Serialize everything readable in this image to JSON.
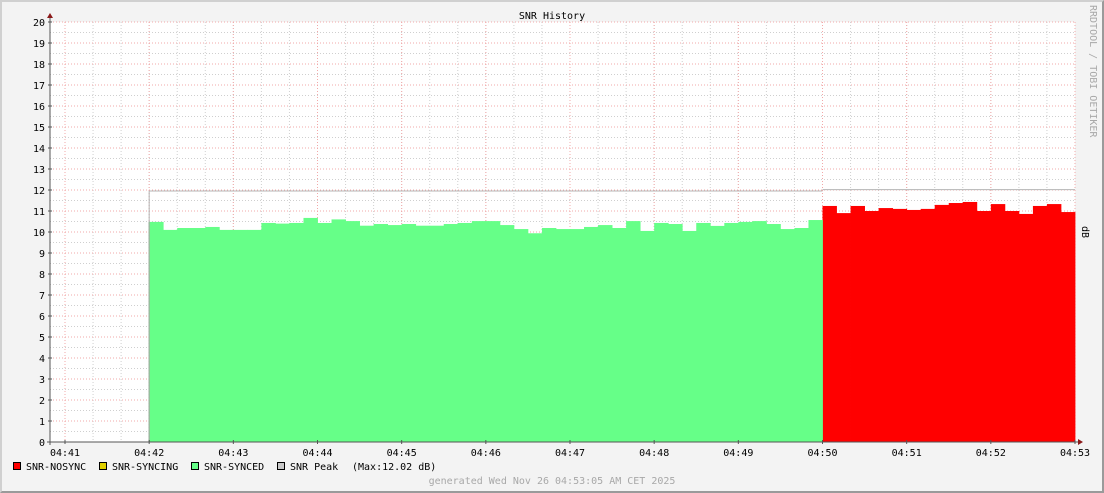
{
  "chart_data": {
    "type": "area",
    "title": "SNR History",
    "ylabel": "dB",
    "watermark": "RRDTOOL / TOBI OETIKER",
    "ylim": [
      0,
      20
    ],
    "yticks": [
      "0",
      "1",
      "2",
      "3",
      "4",
      "5",
      "6",
      "7",
      "8",
      "9",
      "10",
      "11",
      "12",
      "13",
      "14",
      "15",
      "16",
      "17",
      "18",
      "19",
      "20"
    ],
    "xlim": [
      "04:41",
      "04:53"
    ],
    "xticks": [
      "04:41",
      "04:42",
      "04:43",
      "04:44",
      "04:45",
      "04:46",
      "04:47",
      "04:48",
      "04:49",
      "04:50",
      "04:51",
      "04:52",
      "04:53"
    ],
    "grid": true,
    "step_seconds": 10,
    "series": [
      {
        "name": "SNR-NOSYNC",
        "color": "#ff0000",
        "start": "04:50:00",
        "values": [
          11.24,
          10.9,
          11.24,
          11.0,
          11.14,
          11.1,
          11.05,
          11.1,
          11.29,
          11.38,
          11.43,
          11.0,
          11.33,
          11.0,
          10.86,
          11.24,
          11.33,
          10.95
        ]
      },
      {
        "name": "SNR-SYNCING",
        "color": "#e0d000",
        "start": null,
        "values": []
      },
      {
        "name": "SNR-SYNCED",
        "color": "#66ff88",
        "start": "04:42:00",
        "values": [
          10.48,
          10.1,
          10.19,
          10.19,
          10.24,
          10.1,
          10.1,
          10.1,
          10.43,
          10.4,
          10.43,
          10.67,
          10.43,
          10.6,
          10.52,
          10.3,
          10.38,
          10.33,
          10.38,
          10.3,
          10.3,
          10.38,
          10.43,
          10.52,
          10.52,
          10.33,
          10.14,
          9.94,
          10.19,
          10.14,
          10.14,
          10.24,
          10.33,
          10.19,
          10.52,
          10.05,
          10.43,
          10.38,
          10.05,
          10.43,
          10.29,
          10.43,
          10.48,
          10.52,
          10.38,
          10.14,
          10.19,
          10.57
        ]
      },
      {
        "name": "SNR Peak",
        "color": "#c8c8c8",
        "start": "04:42:00",
        "segments": [
          {
            "from": "04:42:00",
            "to": "04:50:00",
            "value": 11.95
          },
          {
            "from": "04:50:00",
            "to": "04:53:00",
            "value": 12.02
          }
        ]
      }
    ],
    "legend": {
      "placement": "bottom-left",
      "items": [
        "SNR-NOSYNC",
        "SNR-SYNCING",
        "SNR-SYNCED",
        "SNR Peak"
      ],
      "max_note": "(Max:12.02 dB)"
    },
    "footer": "generated Wed Nov 26 04:53:05 AM CET 2025"
  }
}
